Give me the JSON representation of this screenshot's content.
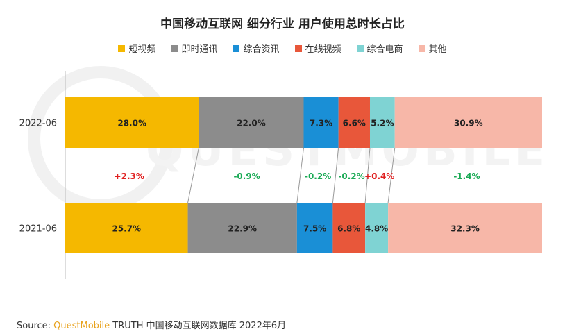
{
  "title": "中国移动互联网 细分行业 用户使用总时长占比",
  "source": {
    "prefix": "Source: ",
    "brand": "QuestMobile",
    "rest": " TRUTH 中国移动互联网数据库 2022年6月"
  },
  "watermark": "QUESTMOBILE",
  "chart_data": {
    "type": "bar",
    "orientation": "horizontal-stacked-100",
    "categories": [
      "2022-06",
      "2021-06"
    ],
    "series": [
      {
        "name": "短视频",
        "color": "#F5B800",
        "values": [
          28.0,
          25.7
        ],
        "labels": [
          "28.0%",
          "25.7%"
        ],
        "change": "+2.3%"
      },
      {
        "name": "即时通讯",
        "color": "#8C8C8C",
        "values": [
          22.0,
          22.9
        ],
        "labels": [
          "22.0%",
          "22.9%"
        ],
        "change": "-0.9%"
      },
      {
        "name": "综合资讯",
        "color": "#1A8FD6",
        "values": [
          7.3,
          7.5
        ],
        "labels": [
          "7.3%",
          "7.5%"
        ],
        "change": "-0.2%"
      },
      {
        "name": "在线视频",
        "color": "#E8573A",
        "values": [
          6.6,
          6.8
        ],
        "labels": [
          "6.6%",
          "6.8%"
        ],
        "change": "-0.2%"
      },
      {
        "name": "综合电商",
        "color": "#7FD3D3",
        "values": [
          5.2,
          4.8
        ],
        "labels": [
          "5.2%",
          "4.8%"
        ],
        "change": "+0.4%"
      },
      {
        "name": "其他",
        "color": "#F7B7A8",
        "values": [
          30.9,
          32.3
        ],
        "labels": [
          "30.9%",
          "32.3%"
        ],
        "change": "-1.4%"
      }
    ],
    "change_colors": {
      "positive": "#E02020",
      "negative": "#1AAA55"
    },
    "xlim": [
      0,
      100
    ],
    "legend_position": "top-center",
    "grid": false
  }
}
